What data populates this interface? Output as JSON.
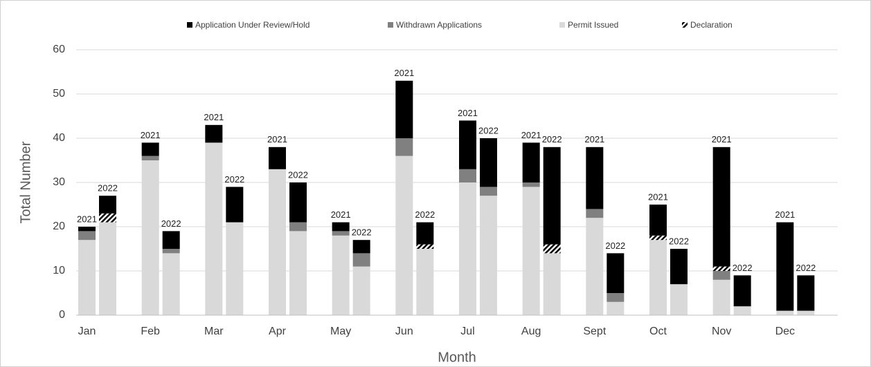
{
  "chart_data": {
    "type": "grouped-stacked-bar",
    "xlabel": "Month",
    "ylabel": "Total Number",
    "categories": [
      "Jan",
      "Feb",
      "Mar",
      "Apr",
      "May",
      "Jun",
      "Jul",
      "Aug",
      "Sept",
      "Oct",
      "Nov",
      "Dec"
    ],
    "groups": [
      "2021",
      "2022"
    ],
    "series": [
      {
        "name": "Application Under Review/Hold",
        "color": "#000000",
        "values": [
          [
            1,
            4
          ],
          [
            3,
            4
          ],
          [
            4,
            8
          ],
          [
            5,
            9
          ],
          [
            2,
            3
          ],
          [
            13,
            5
          ],
          [
            11,
            11
          ],
          [
            9,
            22
          ],
          [
            14,
            9
          ],
          [
            7,
            8
          ],
          [
            27,
            7
          ],
          [
            20,
            8
          ]
        ]
      },
      {
        "name": "Withdrawn Applications",
        "color": "#808080",
        "values": [
          [
            2,
            0
          ],
          [
            1,
            1
          ],
          [
            0,
            0
          ],
          [
            0,
            2
          ],
          [
            1,
            3
          ],
          [
            4,
            0
          ],
          [
            3,
            2
          ],
          [
            1,
            0
          ],
          [
            2,
            2
          ],
          [
            0,
            0
          ],
          [
            2,
            0
          ],
          [
            0,
            0
          ]
        ]
      },
      {
        "name": "Permit Issued",
        "color": "#d9d9d9",
        "values": [
          [
            17,
            21
          ],
          [
            35,
            14
          ],
          [
            39,
            21
          ],
          [
            33,
            19
          ],
          [
            18,
            11
          ],
          [
            36,
            15
          ],
          [
            30,
            27
          ],
          [
            29,
            14
          ],
          [
            22,
            3
          ],
          [
            17,
            7
          ],
          [
            8,
            2
          ],
          [
            1,
            1
          ]
        ]
      },
      {
        "name": "Declaration",
        "color": "#000000",
        "hatch": true,
        "values": [
          [
            0,
            2
          ],
          [
            0,
            0
          ],
          [
            0,
            0
          ],
          [
            0,
            0
          ],
          [
            0,
            0
          ],
          [
            0,
            1
          ],
          [
            0,
            0
          ],
          [
            0,
            2
          ],
          [
            0,
            0
          ],
          [
            1,
            0
          ],
          [
            1,
            0
          ],
          [
            0,
            0
          ]
        ]
      }
    ],
    "ylim": [
      0,
      60
    ],
    "yticks": [
      0,
      10,
      20,
      30,
      40,
      50,
      60
    ],
    "grid": true,
    "legend": "top"
  }
}
